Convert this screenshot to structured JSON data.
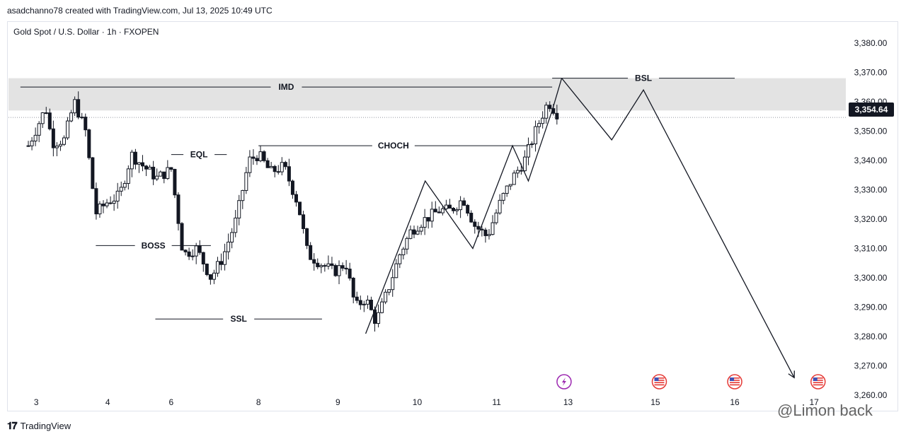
{
  "header": {
    "credit": "asadchanno78 created with TradingView.com, Jul 13, 2025 10:49 UTC",
    "symbol": "Gold Spot / U.S. Dollar · 1h · FXOPEN"
  },
  "footer": {
    "brand": "TradingView",
    "watermark": "@Limon back"
  },
  "colors": {
    "candle": "#131722",
    "zone": "#e3e3e3",
    "line": "#131722",
    "event_purple": "#9c27b0",
    "flag_red": "#e53935"
  },
  "icons": [
    "lightning-event-icon",
    "us-flag-icon",
    "us-flag-icon",
    "us-flag-icon"
  ],
  "current_price_label": "3,354.64",
  "chart_data": {
    "type": "candlestick",
    "title": "Gold Spot / U.S. Dollar · 1h · FXOPEN",
    "current_price": 3354.64,
    "ylim": [
      3255,
      3385
    ],
    "yticks": [
      3260,
      3270,
      3280,
      3290,
      3300,
      3310,
      3320,
      3330,
      3340,
      3350,
      3360,
      3370,
      3380
    ],
    "ytick_labels": [
      "3,260.00",
      "3,270.00",
      "3,280.00",
      "3,290.00",
      "3,300.00",
      "3,310.00",
      "3,320.00",
      "3,330.00",
      "3,340.00",
      "3,350.00",
      "3,360.00",
      "3,370.00",
      "3,380.00"
    ],
    "xticks": [
      "3",
      "4",
      "6",
      "8",
      "9",
      "10",
      "11",
      "13",
      "15",
      "16",
      "17"
    ],
    "xtick_pos": [
      0.1,
      1.0,
      1.8,
      2.9,
      3.9,
      4.9,
      5.9,
      6.8,
      7.9,
      8.9,
      9.9
    ],
    "xlim": [
      -0.25,
      10.3
    ],
    "close_path": [
      [
        0.0,
        3345
      ],
      [
        0.12,
        3352
      ],
      [
        0.22,
        3358
      ],
      [
        0.3,
        3346
      ],
      [
        0.45,
        3347
      ],
      [
        0.58,
        3360
      ],
      [
        0.72,
        3350
      ],
      [
        0.85,
        3322
      ],
      [
        1.0,
        3326
      ],
      [
        1.15,
        3328
      ],
      [
        1.3,
        3342
      ],
      [
        1.45,
        3338
      ],
      [
        1.62,
        3334
      ],
      [
        1.8,
        3337
      ],
      [
        1.95,
        3308
      ],
      [
        2.12,
        3310
      ],
      [
        2.3,
        3300
      ],
      [
        2.45,
        3307
      ],
      [
        2.62,
        3320
      ],
      [
        2.78,
        3340
      ],
      [
        2.9,
        3342
      ],
      [
        3.05,
        3336
      ],
      [
        3.22,
        3338
      ],
      [
        3.4,
        3325
      ],
      [
        3.52,
        3308
      ],
      [
        3.68,
        3305
      ],
      [
        3.85,
        3302
      ],
      [
        4.0,
        3305
      ],
      [
        4.12,
        3290
      ],
      [
        4.25,
        3293
      ],
      [
        4.38,
        3285
      ],
      [
        4.52,
        3295
      ],
      [
        4.68,
        3308
      ],
      [
        4.82,
        3316
      ],
      [
        5.0,
        3320
      ],
      [
        5.18,
        3323
      ],
      [
        5.32,
        3323
      ],
      [
        5.48,
        3327
      ],
      [
        5.62,
        3318
      ],
      [
        5.78,
        3314
      ],
      [
        5.95,
        3326
      ],
      [
        6.1,
        3334
      ],
      [
        6.25,
        3340
      ],
      [
        6.42,
        3352
      ],
      [
        6.55,
        3360
      ],
      [
        6.7,
        3354.64
      ]
    ],
    "zone": {
      "from": 3357,
      "to": 3368
    },
    "annotations": [
      {
        "label": "IMD",
        "y": 3365,
        "x_from": -0.1,
        "x_to": 6.6
      },
      {
        "label": "EQL",
        "y": 3342,
        "x_from": 1.8,
        "x_to": 2.5
      },
      {
        "label": "CHOCH",
        "y": 3345,
        "x_from": 2.9,
        "x_to": 6.3
      },
      {
        "label": "BOSS",
        "y": 3311,
        "x_from": 0.85,
        "x_to": 2.3
      },
      {
        "label": "SSL",
        "y": 3286,
        "x_from": 1.6,
        "x_to": 3.7
      },
      {
        "label": "BSL",
        "y": 3368,
        "x_from": 6.6,
        "x_to": 8.9
      }
    ],
    "zigzags": [
      [
        [
          4.25,
          3281
        ],
        [
          5.0,
          3333
        ],
        [
          5.6,
          3310
        ],
        [
          6.1,
          3345
        ],
        [
          6.3,
          3333
        ],
        [
          6.6,
          3357
        ],
        [
          6.72,
          3368
        ]
      ],
      [
        [
          6.72,
          3368
        ],
        [
          7.35,
          3347
        ],
        [
          7.75,
          3364
        ],
        [
          9.65,
          3266
        ]
      ]
    ],
    "event_markers_x": [
      6.75,
      7.95,
      8.9,
      9.95
    ]
  }
}
